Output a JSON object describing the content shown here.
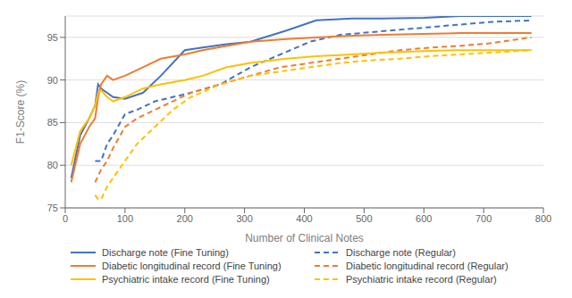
{
  "chart_data": {
    "type": "line",
    "xlabel": "Number of Clinical Notes",
    "ylabel": "F1-Score (%)",
    "xlim": [
      0,
      800
    ],
    "ylim": [
      75,
      97.5
    ],
    "xticks": [
      0,
      100,
      200,
      300,
      400,
      500,
      600,
      700,
      800
    ],
    "yticks": [
      75,
      80,
      85,
      90,
      95
    ],
    "grid": "y",
    "legend": "bottom",
    "series": [
      {
        "name": "Discharge note (Fine Tuning)",
        "color": "#4472C4",
        "line_style": "solid",
        "x": [
          10,
          25,
          40,
          50,
          55,
          60,
          70,
          80,
          100,
          130,
          160,
          200,
          230,
          270,
          310,
          370,
          420,
          480,
          530,
          600,
          660,
          720,
          780
        ],
        "values": [
          78.5,
          83.5,
          85.5,
          87.0,
          89.5,
          89.0,
          88.5,
          88.0,
          87.8,
          88.5,
          90.5,
          93.5,
          93.8,
          94.2,
          94.5,
          95.8,
          97.0,
          97.2,
          97.2,
          97.3,
          97.5,
          97.5,
          97.5
        ]
      },
      {
        "name": "Discharge note (Regular)",
        "color": "#4472C4",
        "line_style": "dashed",
        "x": [
          50,
          60,
          70,
          80,
          100,
          120,
          150,
          180,
          210,
          260,
          310,
          360,
          410,
          460,
          510,
          560,
          610,
          660,
          710,
          780
        ],
        "values": [
          80.5,
          80.5,
          82.5,
          83.5,
          86.0,
          86.5,
          87.5,
          88.0,
          88.5,
          89.5,
          91.5,
          93.0,
          94.5,
          95.3,
          95.6,
          95.9,
          96.2,
          96.5,
          96.8,
          97.0
        ]
      },
      {
        "name": "Diabetic longitudinal record (Fine Tuning)",
        "color": "#ED7D31",
        "line_style": "solid",
        "x": [
          10,
          25,
          40,
          50,
          55,
          60,
          70,
          80,
          100,
          130,
          160,
          200,
          230,
          270,
          310,
          370,
          420,
          480,
          530,
          600,
          660,
          720,
          780
        ],
        "values": [
          78.0,
          82.5,
          84.5,
          85.5,
          88.0,
          89.5,
          90.5,
          90.0,
          90.5,
          91.5,
          92.5,
          93.0,
          93.5,
          94.0,
          94.5,
          94.8,
          95.0,
          95.2,
          95.3,
          95.4,
          95.5,
          95.5,
          95.5
        ]
      },
      {
        "name": "Diabetic longitudinal record (Regular)",
        "color": "#ED7D31",
        "line_style": "dashed",
        "x": [
          50,
          60,
          70,
          80,
          100,
          120,
          150,
          180,
          210,
          260,
          310,
          360,
          410,
          460,
          510,
          560,
          610,
          660,
          710,
          780
        ],
        "values": [
          78.0,
          79.5,
          80.5,
          82.0,
          84.5,
          85.5,
          86.5,
          87.5,
          88.5,
          89.5,
          90.5,
          91.5,
          92.0,
          92.5,
          93.0,
          93.5,
          93.8,
          94.0,
          94.3,
          95.0
        ]
      },
      {
        "name": "Psychiatric intake record (Fine Tuning)",
        "color": "#FFC000",
        "line_style": "solid",
        "x": [
          10,
          25,
          40,
          50,
          55,
          60,
          70,
          80,
          100,
          130,
          160,
          200,
          230,
          270,
          310,
          370,
          420,
          480,
          530,
          600,
          660,
          720,
          780
        ],
        "values": [
          80.0,
          84.0,
          85.5,
          87.0,
          88.5,
          88.8,
          88.0,
          87.5,
          88.0,
          89.0,
          89.5,
          90.0,
          90.5,
          91.5,
          92.0,
          92.5,
          92.8,
          93.0,
          93.2,
          93.4,
          93.5,
          93.5,
          93.5
        ]
      },
      {
        "name": "Psychiatric intake record (Regular)",
        "color": "#FFC000",
        "line_style": "dashed",
        "x": [
          50,
          55,
          60,
          70,
          80,
          100,
          120,
          150,
          180,
          210,
          260,
          310,
          360,
          410,
          460,
          510,
          560,
          610,
          660,
          710,
          780
        ],
        "values": [
          76.5,
          76.0,
          76.0,
          77.5,
          78.5,
          80.5,
          82.5,
          84.5,
          86.5,
          88.0,
          89.5,
          90.5,
          91.0,
          91.5,
          92.0,
          92.3,
          92.5,
          92.8,
          93.0,
          93.2,
          93.5
        ]
      }
    ]
  }
}
